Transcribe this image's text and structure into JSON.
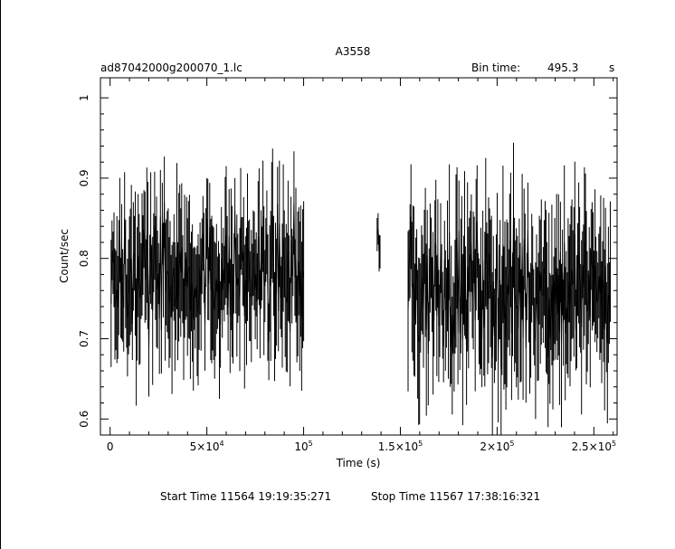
{
  "chart_data": {
    "type": "line",
    "title": "A3558",
    "subtitle_left": "ad87042000g200070_1.lc",
    "bin_time_label": "Bin time:",
    "bin_time_value": "495.3",
    "bin_time_unit": "s",
    "xlabel": "Time (s)",
    "ylabel": "Count/sec",
    "xlim": [
      -5000,
      262000
    ],
    "ylim": [
      0.58,
      1.025
    ],
    "x_ticks": [
      {
        "value": 0,
        "label": "0",
        "exp": ""
      },
      {
        "value": 50000,
        "label": "5×10",
        "exp": "4"
      },
      {
        "value": 100000,
        "label": "10",
        "exp": "5"
      },
      {
        "value": 150000,
        "label": "1.5×10",
        "exp": "5"
      },
      {
        "value": 200000,
        "label": "2×10",
        "exp": "5"
      },
      {
        "value": 250000,
        "label": "2.5×10",
        "exp": "5"
      }
    ],
    "y_ticks": [
      {
        "value": 0.6,
        "label": "0.6"
      },
      {
        "value": 0.7,
        "label": "0.7"
      },
      {
        "value": 0.8,
        "label": "0.8"
      },
      {
        "value": 0.9,
        "label": "0.9"
      },
      {
        "value": 1.0,
        "label": "1"
      }
    ],
    "grid": false,
    "series": [
      {
        "segments": [
          {
            "x_start": 500,
            "x_end": 100000,
            "mean": 0.78,
            "spread": 0.065,
            "points": 200
          },
          {
            "x_start": 138000,
            "x_end": 139500,
            "mean": 0.82,
            "spread": 0.02,
            "points": 4
          },
          {
            "x_start": 154000,
            "x_end": 258500,
            "mean": 0.76,
            "spread": 0.075,
            "points": 212
          }
        ]
      }
    ],
    "footer_start": "Start Time 11564  19:19:35:271",
    "footer_stop": "Stop Time 11567  17:38:16:321"
  }
}
